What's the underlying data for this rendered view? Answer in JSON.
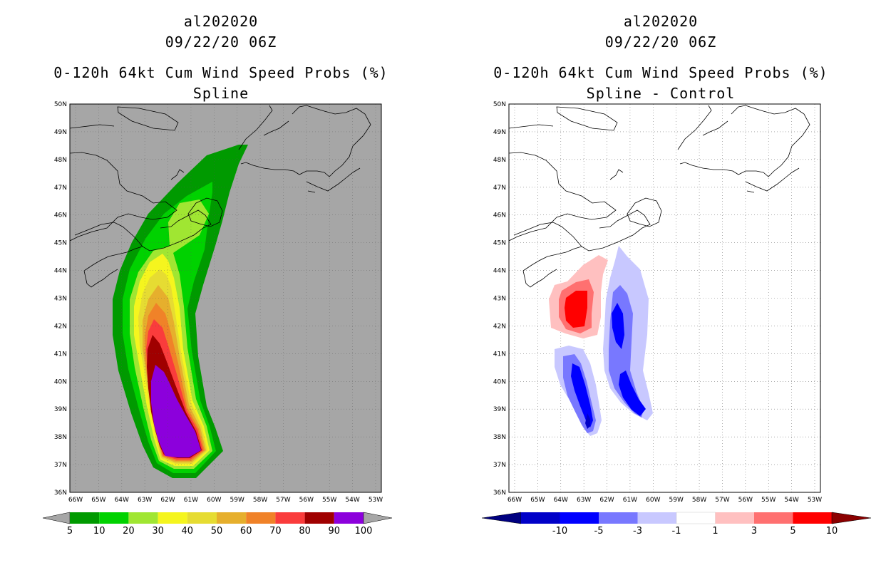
{
  "left_panel": {
    "title_line1": "al202020",
    "title_line2": "09/22/20 06Z",
    "title_line3": "0-120h 64kt Cum Wind Speed Probs (%)",
    "title_line4": "Spline",
    "colorbar_labels": [
      "5",
      "10",
      "20",
      "30",
      "40",
      "50",
      "60",
      "70",
      "80",
      "90",
      "100"
    ],
    "colorbar_colors": [
      "#009a00",
      "#00d200",
      "#a0e632",
      "#f5f51e",
      "#e6dc32",
      "#e6af2d",
      "#f08228",
      "#fa3c3c",
      "#a00000",
      "#8c00dc"
    ],
    "background": "#a6a6a6"
  },
  "right_panel": {
    "title_line1": "al202020",
    "title_line2": "09/22/20 06Z",
    "title_line3": "0-120h 64kt Cum Wind Speed Probs (%)",
    "title_line4": "Spline - Control",
    "colorbar_labels": [
      "-10",
      "-5",
      "-3",
      "-1",
      "1",
      "3",
      "5",
      "10"
    ],
    "colorbar_colors": [
      "#0000c8",
      "#0000ff",
      "#7878ff",
      "#c8c8ff",
      "#ffffff",
      "#ffc0c0",
      "#ff7070",
      "#ff0000",
      "#8b0000",
      "#000080"
    ]
  },
  "axes": {
    "lat_labels": [
      "50N",
      "49N",
      "48N",
      "47N",
      "46N",
      "45N",
      "44N",
      "43N",
      "42N",
      "41N",
      "40N",
      "39N",
      "38N",
      "37N",
      "36N"
    ],
    "lon_labels": [
      "66W",
      "65W",
      "64W",
      "63W",
      "62W",
      "61W",
      "60W",
      "59W",
      "58W",
      "57W",
      "56W",
      "55W",
      "54W",
      "53W"
    ]
  }
}
